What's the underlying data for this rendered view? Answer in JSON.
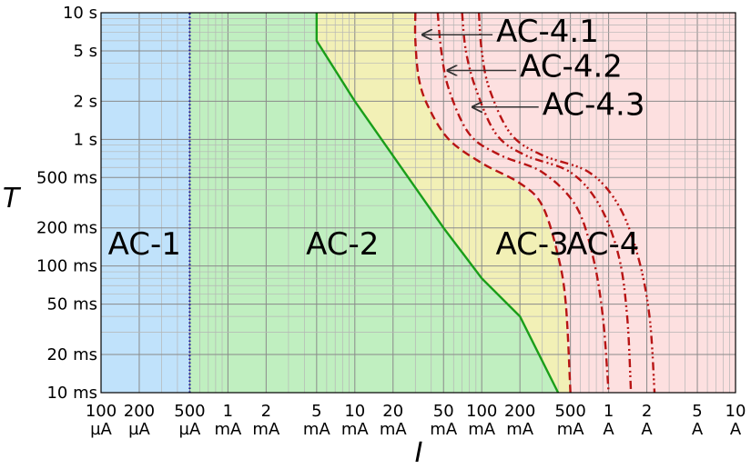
{
  "chart_data": {
    "type": "area",
    "title": "",
    "xlabel": "I",
    "ylabel": "T",
    "x_scale": "log",
    "y_scale": "log",
    "xlim_mA": [
      0.1,
      10000
    ],
    "ylim_ms": [
      10,
      10000
    ],
    "grid": true,
    "x_ticks": [
      {
        "value_mA": 0.1,
        "label_top": "100",
        "label_bottom": "µA"
      },
      {
        "value_mA": 0.2,
        "label_top": "200",
        "label_bottom": "µA"
      },
      {
        "value_mA": 0.5,
        "label_top": "500",
        "label_bottom": "µA"
      },
      {
        "value_mA": 1,
        "label_top": "1",
        "label_bottom": "mA"
      },
      {
        "value_mA": 2,
        "label_top": "2",
        "label_bottom": "mA"
      },
      {
        "value_mA": 5,
        "label_top": "5",
        "label_bottom": "mA"
      },
      {
        "value_mA": 10,
        "label_top": "10",
        "label_bottom": "mA"
      },
      {
        "value_mA": 20,
        "label_top": "20",
        "label_bottom": "mA"
      },
      {
        "value_mA": 50,
        "label_top": "50",
        "label_bottom": "mA"
      },
      {
        "value_mA": 100,
        "label_top": "100",
        "label_bottom": "mA"
      },
      {
        "value_mA": 200,
        "label_top": "200",
        "label_bottom": "mA"
      },
      {
        "value_mA": 500,
        "label_top": "500",
        "label_bottom": "mA"
      },
      {
        "value_mA": 1000,
        "label_top": "1",
        "label_bottom": "A"
      },
      {
        "value_mA": 2000,
        "label_top": "2",
        "label_bottom": "A"
      },
      {
        "value_mA": 5000,
        "label_top": "5",
        "label_bottom": "A"
      },
      {
        "value_mA": 10000,
        "label_top": "10",
        "label_bottom": "A"
      }
    ],
    "y_ticks": [
      {
        "value_ms": 10,
        "label": "10 ms"
      },
      {
        "value_ms": 20,
        "label": "20 ms"
      },
      {
        "value_ms": 50,
        "label": "50 ms"
      },
      {
        "value_ms": 100,
        "label": "100 ms"
      },
      {
        "value_ms": 200,
        "label": "200 ms"
      },
      {
        "value_ms": 500,
        "label": "500 ms"
      },
      {
        "value_ms": 1000,
        "label": "1 s"
      },
      {
        "value_ms": 2000,
        "label": "2 s"
      },
      {
        "value_ms": 5000,
        "label": "5 s"
      },
      {
        "value_ms": 10000,
        "label": "10 s"
      }
    ],
    "zones": [
      {
        "name": "AC-1",
        "color": "#c0e2fb",
        "label_at": {
          "x_mA": 0.22,
          "y_ms": 150
        }
      },
      {
        "name": "AC-2",
        "color": "#c0efc0",
        "label_at": {
          "x_mA": 8,
          "y_ms": 150
        }
      },
      {
        "name": "AC-3",
        "color": "#f2f0b6",
        "label_at": {
          "x_mA": 250,
          "y_ms": 150
        }
      },
      {
        "name": "AC-4",
        "color": "#fde0e0",
        "label_at": {
          "x_mA": 900,
          "y_ms": 150
        }
      }
    ],
    "boundaries": [
      {
        "name": "AC-1/AC-2",
        "style": "dotted",
        "color": "#1a1a9e",
        "points": [
          [
            0.5,
            10
          ],
          [
            0.5,
            10000
          ]
        ]
      },
      {
        "name": "AC-2/AC-3",
        "style": "solid",
        "color": "#1a9e1a",
        "points": [
          [
            5,
            10000
          ],
          [
            5,
            6000
          ],
          [
            10,
            2000
          ],
          [
            50,
            200
          ],
          [
            100,
            80
          ],
          [
            200,
            40
          ],
          [
            400,
            10
          ]
        ]
      },
      {
        "name": "AC-3/AC-4",
        "style": "dashed",
        "color": "#b81414",
        "points": [
          [
            30,
            10000
          ],
          [
            30,
            6000
          ],
          [
            32,
            3000
          ],
          [
            38,
            1800
          ],
          [
            55,
            1000
          ],
          [
            100,
            650
          ],
          [
            200,
            450
          ],
          [
            300,
            300
          ],
          [
            400,
            120
          ],
          [
            460,
            50
          ],
          [
            500,
            10
          ]
        ]
      },
      {
        "name": "AC-4.1",
        "style": "dashdot",
        "color": "#b81414",
        "points": [
          [
            45,
            10000
          ],
          [
            48,
            5000
          ],
          [
            55,
            2500
          ],
          [
            80,
            1100
          ],
          [
            140,
            750
          ],
          [
            300,
            550
          ],
          [
            550,
            300
          ],
          [
            750,
            120
          ],
          [
            900,
            40
          ],
          [
            1000,
            10
          ]
        ]
      },
      {
        "name": "AC-4.2",
        "style": "dashdotdot",
        "color": "#b81414",
        "points": [
          [
            70,
            10000
          ],
          [
            75,
            5000
          ],
          [
            90,
            2500
          ],
          [
            130,
            1100
          ],
          [
            220,
            750
          ],
          [
            500,
            550
          ],
          [
            850,
            300
          ],
          [
            1200,
            120
          ],
          [
            1400,
            40
          ],
          [
            1500,
            10
          ]
        ]
      },
      {
        "name": "AC-4.3",
        "style": "dashdotdotdot",
        "color": "#b81414",
        "points": [
          [
            95,
            10000
          ],
          [
            100,
            5000
          ],
          [
            115,
            2500
          ],
          [
            170,
            1100
          ],
          [
            300,
            750
          ],
          [
            700,
            550
          ],
          [
            1200,
            300
          ],
          [
            1700,
            120
          ],
          [
            2100,
            40
          ],
          [
            2300,
            10
          ]
        ]
      }
    ],
    "curve_labels": [
      {
        "name": "AC-4.1",
        "text_at": {
          "x_mA": 130,
          "y_ms": 7200
        },
        "arrow_to": {
          "x_mA": 33,
          "y_ms": 6700
        }
      },
      {
        "name": "AC-4.2",
        "text_at": {
          "x_mA": 200,
          "y_ms": 3800
        },
        "arrow_to": {
          "x_mA": 52,
          "y_ms": 3500
        }
      },
      {
        "name": "AC-4.3",
        "text_at": {
          "x_mA": 300,
          "y_ms": 1900
        },
        "arrow_to": {
          "x_mA": 82,
          "y_ms": 1800
        }
      }
    ]
  }
}
